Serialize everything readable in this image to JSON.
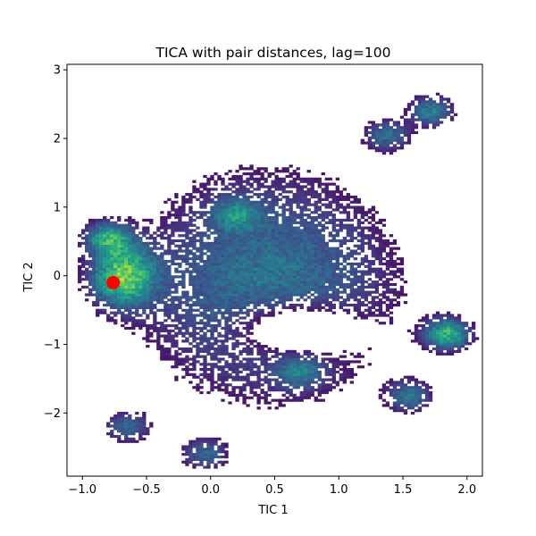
{
  "chart_data": {
    "type": "heatmap",
    "title": "TICA with pair distances, lag=100",
    "xlabel": "TIC 1",
    "ylabel": "TIC 2",
    "xlim": [
      -1.12,
      2.12
    ],
    "ylim": [
      -2.92,
      3.08
    ],
    "xticks": [
      -1.0,
      -0.5,
      0.0,
      0.5,
      1.0,
      1.5,
      2.0
    ],
    "xtick_labels": [
      "−1.0",
      "−0.5",
      "0.0",
      "0.5",
      "1.0",
      "1.5",
      "2.0"
    ],
    "yticks": [
      -2,
      -1,
      0,
      1,
      2,
      3
    ],
    "ytick_labels": [
      "−2",
      "−1",
      "0",
      "1",
      "2",
      "3"
    ],
    "colormap": "viridis",
    "grid": false,
    "density_peaks": [
      {
        "x": -0.68,
        "y": 0.0,
        "relative_density": 1.0
      },
      {
        "x": -0.8,
        "y": 0.55,
        "relative_density": 0.75
      },
      {
        "x": 1.85,
        "y": -0.85,
        "relative_density": 0.85
      },
      {
        "x": 1.72,
        "y": 2.4,
        "relative_density": 0.6
      },
      {
        "x": 1.38,
        "y": 2.05,
        "relative_density": 0.5
      },
      {
        "x": 1.55,
        "y": -1.75,
        "relative_density": 0.5
      },
      {
        "x": -0.65,
        "y": -2.2,
        "relative_density": 0.45
      },
      {
        "x": -0.05,
        "y": -2.6,
        "relative_density": 0.45
      },
      {
        "x": 0.2,
        "y": 0.9,
        "relative_density": 0.45
      },
      {
        "x": 0.7,
        "y": -1.4,
        "relative_density": 0.4
      }
    ],
    "marker": {
      "x": -0.76,
      "y": -0.1,
      "color": "#ff0000"
    }
  }
}
